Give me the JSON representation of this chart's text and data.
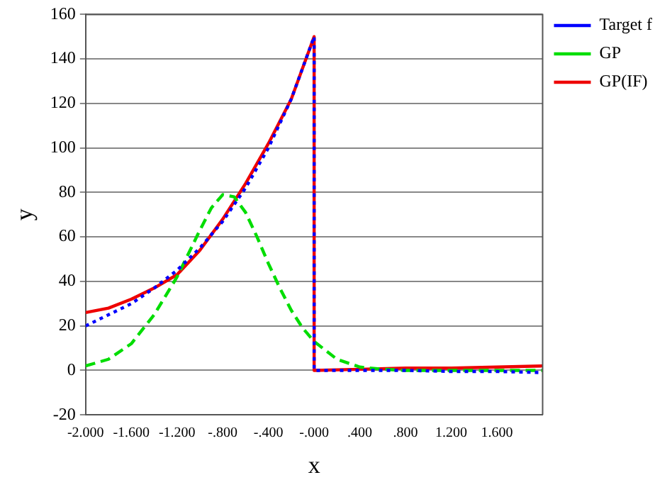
{
  "chart_data": {
    "type": "line",
    "xlabel": "x",
    "ylabel": "y",
    "xlim": [
      -2,
      2
    ],
    "ylim": [
      -20,
      160
    ],
    "xticks": [
      {
        "value": -2,
        "label": "-2.000"
      },
      {
        "value": -1.6,
        "label": "-1.600"
      },
      {
        "value": -1.2,
        "label": "-1.200"
      },
      {
        "value": -0.8,
        "label": "-.800"
      },
      {
        "value": -0.4,
        "label": "-.400"
      },
      {
        "value": 0,
        "label": "-.000"
      },
      {
        "value": 0.4,
        "label": ".400"
      },
      {
        "value": 0.8,
        "label": ".800"
      },
      {
        "value": 1.2,
        "label": "1.200"
      },
      {
        "value": 1.6,
        "label": "1.600"
      },
      {
        "value": 2,
        "label": null
      }
    ],
    "yticks": [
      -20,
      0,
      20,
      40,
      60,
      80,
      100,
      120,
      140,
      160
    ],
    "grid": "y",
    "legend": "top right",
    "marker": "none",
    "series": [
      {
        "name": "Target f",
        "color": "#0000ff",
        "line_style": "dotted",
        "x": [
          -2,
          -1.8,
          -1.6,
          -1.4,
          -1.2,
          -1.0,
          -0.8,
          -0.6,
          -0.4,
          -0.2,
          0,
          0,
          0.4,
          0.8,
          1.2,
          1.6,
          2
        ],
        "values": [
          20,
          25,
          30,
          37,
          45,
          55,
          67,
          82,
          100,
          122,
          150,
          0,
          0,
          0,
          -0.5,
          -0.5,
          -1
        ]
      },
      {
        "name": "GP",
        "color": "#00dd00",
        "line_style": "dashed",
        "x": [
          -2,
          -1.8,
          -1.6,
          -1.4,
          -1.2,
          -1.0,
          -0.9,
          -0.8,
          -0.7,
          -0.6,
          -0.5,
          -0.4,
          -0.3,
          -0.2,
          -0.1,
          0,
          0.2,
          0.4,
          0.6,
          0.8,
          1.2,
          1.6,
          2
        ],
        "values": [
          2,
          5,
          12,
          25,
          42,
          63,
          73,
          79,
          78,
          71,
          60,
          48,
          37,
          27,
          19,
          13,
          5,
          1.5,
          0.5,
          0,
          0,
          0,
          0
        ]
      },
      {
        "name": "GP(IF)",
        "color": "#ee0000",
        "line_style": "solid",
        "x": [
          -2,
          -1.8,
          -1.6,
          -1.4,
          -1.2,
          -1.0,
          -0.8,
          -0.6,
          -0.4,
          -0.2,
          0,
          0,
          0.4,
          0.8,
          1.2,
          1.6,
          2
        ],
        "values": [
          26,
          28,
          32,
          37,
          43,
          54,
          68,
          84,
          102,
          122,
          150,
          0,
          0.5,
          1,
          1,
          1.5,
          2
        ]
      }
    ]
  }
}
